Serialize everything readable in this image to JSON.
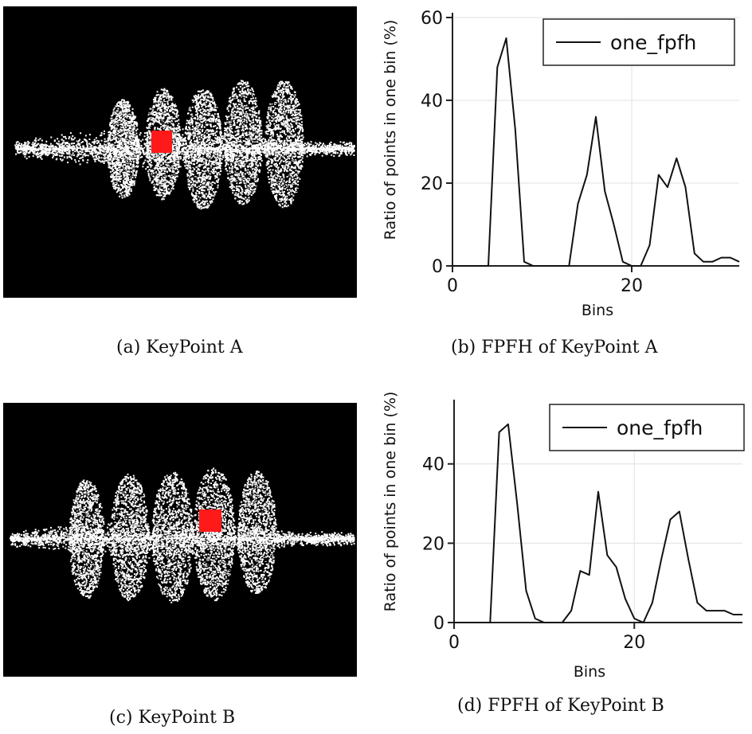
{
  "captions": {
    "a": "(a) KeyPoint A",
    "b": "(b) FPFH of KeyPoint A",
    "c": "(c) KeyPoint B",
    "d": "(d) FPFH of KeyPoint B"
  },
  "colors": {
    "background": "#000000",
    "points": "#ffffff",
    "keypoint": "#ff1a1a",
    "line": "#111111",
    "grid": "#e6e6e6"
  },
  "chart_data": [
    {
      "type": "line",
      "xlabel": "Bins",
      "ylabel": "Ratio of points in one bin (%)",
      "xlim": [
        0,
        32
      ],
      "ylim": [
        0,
        60
      ],
      "xticks": [
        0,
        20
      ],
      "yticks": [
        0,
        20,
        40,
        60
      ],
      "grid": true,
      "legend": "top-right",
      "series": [
        {
          "name": "one_fpfh",
          "x": [
            0,
            1,
            2,
            3,
            4,
            5,
            6,
            7,
            8,
            9,
            10,
            11,
            12,
            13,
            14,
            15,
            16,
            17,
            18,
            19,
            20,
            21,
            22,
            23,
            24,
            25,
            26,
            27,
            28,
            29,
            30,
            31,
            32
          ],
          "values": [
            0,
            0,
            0,
            0,
            0,
            48,
            55,
            33,
            1,
            0,
            0,
            0,
            0,
            0,
            15,
            22,
            36,
            18,
            10,
            1,
            0,
            0,
            5,
            22,
            19,
            26,
            19,
            3,
            1,
            1,
            2,
            2,
            1
          ]
        }
      ]
    },
    {
      "type": "line",
      "xlabel": "Bins",
      "ylabel": "Ratio of points in one bin (%)",
      "xlim": [
        0,
        32
      ],
      "ylim": [
        0,
        55
      ],
      "xticks": [
        0,
        20
      ],
      "yticks": [
        0,
        20,
        40
      ],
      "grid": true,
      "legend": "top-right",
      "series": [
        {
          "name": "one_fpfh",
          "x": [
            0,
            1,
            2,
            3,
            4,
            5,
            6,
            7,
            8,
            9,
            10,
            11,
            12,
            13,
            14,
            15,
            16,
            17,
            18,
            19,
            20,
            21,
            22,
            23,
            24,
            25,
            26,
            27,
            28,
            29,
            30,
            31,
            32
          ],
          "values": [
            0,
            0,
            0,
            0,
            0,
            48,
            50,
            30,
            8,
            1,
            0,
            0,
            0,
            3,
            13,
            12,
            33,
            17,
            14,
            6,
            1,
            0,
            5,
            16,
            26,
            28,
            16,
            5,
            3,
            3,
            3,
            2,
            2
          ]
        }
      ]
    }
  ]
}
